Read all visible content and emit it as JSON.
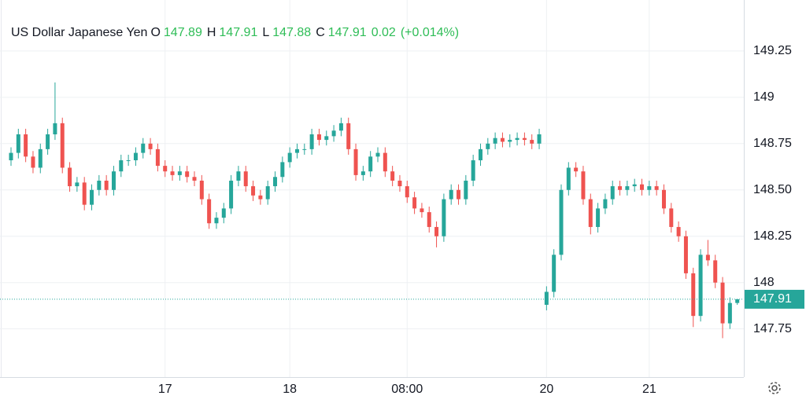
{
  "chart_data": {
    "type": "candlestick",
    "title": "US Dollar Japanese Yen",
    "header": [
      {
        "label": "O",
        "value": 147.89
      },
      {
        "label": "H",
        "value": 147.91
      },
      {
        "label": "L",
        "value": 147.88
      },
      {
        "label": "C",
        "value": 147.91
      }
    ],
    "change": 0.02,
    "change_pct": {
      "value": 0.014,
      "label": "(+0.014%)"
    },
    "last_price": 147.91,
    "up_color": "#26a69a",
    "down_color": "#ef5350",
    "grid": true,
    "ylim": [
      147.49,
      149.525
    ],
    "yticks": [
      147.75,
      148,
      148.25,
      {
        "value": 148.5,
        "label": "148.50"
      },
      148.75,
      149,
      149.25
    ],
    "categories": [
      null,
      null,
      null,
      null,
      null,
      null,
      null,
      null,
      null,
      null,
      null,
      null,
      null,
      null,
      null,
      null,
      null,
      null,
      null,
      null,
      null,
      "17",
      null,
      null,
      null,
      null,
      null,
      null,
      null,
      null,
      null,
      null,
      null,
      null,
      null,
      null,
      null,
      null,
      "18",
      null,
      null,
      null,
      null,
      null,
      null,
      null,
      null,
      null,
      null,
      null,
      null,
      null,
      null,
      null,
      "08:00",
      null,
      null,
      null,
      null,
      null,
      null,
      null,
      null,
      null,
      null,
      null,
      null,
      null,
      null,
      null,
      null,
      null,
      null,
      "20",
      null,
      null,
      null,
      null,
      null,
      null,
      null,
      null,
      null,
      null,
      null,
      null,
      null,
      "21",
      null,
      null,
      null,
      null,
      null,
      null,
      null,
      null,
      null,
      null,
      null,
      null
    ],
    "open": [
      148.66,
      148.7,
      148.8,
      148.68,
      148.62,
      148.72,
      148.8,
      148.86,
      148.62,
      148.52,
      148.54,
      148.42,
      148.5,
      148.55,
      148.5,
      148.6,
      148.66,
      148.66,
      148.7,
      148.75,
      148.72,
      148.63,
      148.6,
      148.58,
      148.6,
      148.57,
      148.55,
      148.45,
      148.32,
      148.35,
      148.4,
      148.55,
      148.6,
      148.52,
      148.47,
      148.45,
      148.52,
      148.57,
      148.65,
      148.7,
      148.72,
      148.72,
      148.8,
      148.77,
      148.79,
      148.82,
      148.86,
      148.72,
      148.58,
      148.6,
      148.68,
      148.7,
      148.6,
      148.55,
      148.52,
      148.46,
      148.4,
      148.38,
      148.3,
      148.25,
      148.45,
      148.5,
      148.45,
      148.55,
      148.66,
      148.72,
      148.75,
      148.78,
      148.76,
      148.77,
      148.78,
      148.77,
      148.75,
      147.88,
      147.95,
      148.15,
      148.5,
      148.62,
      148.6,
      148.45,
      148.3,
      148.4,
      148.45,
      148.52,
      148.5,
      148.52,
      148.53,
      148.5,
      148.52,
      148.5,
      148.4,
      148.3,
      148.25,
      148.05,
      147.82,
      148.15,
      148.12,
      148.0,
      147.78,
      147.89
    ],
    "high": [
      148.73,
      148.83,
      148.83,
      148.71,
      148.75,
      148.83,
      149.08,
      148.89,
      148.65,
      148.57,
      148.57,
      148.53,
      148.58,
      148.58,
      148.63,
      148.69,
      148.69,
      148.73,
      148.78,
      148.78,
      148.75,
      148.66,
      148.63,
      148.63,
      148.63,
      148.6,
      148.58,
      148.48,
      148.38,
      148.43,
      148.58,
      148.63,
      148.63,
      148.55,
      148.5,
      148.55,
      148.6,
      148.68,
      148.73,
      148.75,
      148.75,
      148.83,
      148.83,
      148.82,
      148.85,
      148.89,
      148.89,
      148.75,
      148.63,
      148.71,
      148.73,
      148.73,
      148.63,
      148.58,
      148.55,
      148.49,
      148.43,
      148.41,
      148.33,
      148.48,
      148.53,
      148.53,
      148.58,
      148.69,
      148.75,
      148.78,
      148.81,
      148.81,
      148.8,
      148.81,
      148.81,
      148.8,
      148.83,
      147.98,
      148.18,
      148.53,
      148.65,
      148.65,
      148.63,
      148.48,
      148.43,
      148.48,
      148.55,
      148.55,
      148.55,
      148.56,
      148.56,
      148.55,
      148.55,
      148.53,
      148.43,
      148.33,
      148.28,
      148.08,
      148.18,
      148.23,
      148.15,
      148.03,
      147.92,
      147.91
    ],
    "low": [
      148.63,
      148.67,
      148.65,
      148.59,
      148.59,
      148.69,
      148.77,
      148.59,
      148.49,
      148.49,
      148.39,
      148.39,
      148.47,
      148.47,
      148.47,
      148.57,
      148.63,
      148.63,
      148.67,
      148.69,
      148.6,
      148.57,
      148.55,
      148.55,
      148.54,
      148.52,
      148.42,
      148.29,
      148.29,
      148.32,
      148.37,
      148.52,
      148.49,
      148.44,
      148.42,
      148.42,
      148.49,
      148.54,
      148.62,
      148.67,
      148.69,
      148.69,
      148.74,
      148.74,
      148.76,
      148.79,
      148.69,
      148.55,
      148.55,
      148.57,
      148.65,
      148.57,
      148.52,
      148.49,
      148.43,
      148.37,
      148.35,
      148.27,
      148.19,
      148.22,
      148.42,
      148.42,
      148.42,
      148.52,
      148.63,
      148.69,
      148.72,
      148.73,
      148.73,
      148.74,
      148.74,
      148.72,
      148.72,
      147.85,
      147.92,
      148.12,
      148.47,
      148.57,
      148.42,
      148.26,
      148.27,
      148.37,
      148.42,
      148.47,
      148.47,
      148.49,
      148.47,
      148.47,
      148.47,
      148.37,
      148.27,
      148.22,
      148.02,
      147.76,
      147.79,
      148.09,
      147.97,
      147.7,
      147.75,
      147.88
    ],
    "close": [
      148.7,
      148.8,
      148.68,
      148.62,
      148.72,
      148.8,
      148.86,
      148.62,
      148.52,
      148.54,
      148.42,
      148.5,
      148.55,
      148.5,
      148.6,
      148.66,
      148.66,
      148.7,
      148.75,
      148.72,
      148.63,
      148.6,
      148.58,
      148.6,
      148.57,
      148.55,
      148.45,
      148.32,
      148.35,
      148.4,
      148.55,
      148.6,
      148.52,
      148.47,
      148.45,
      148.52,
      148.57,
      148.65,
      148.7,
      148.72,
      148.72,
      148.8,
      148.77,
      148.79,
      148.82,
      148.86,
      148.72,
      148.58,
      148.6,
      148.68,
      148.7,
      148.6,
      148.55,
      148.52,
      148.46,
      148.4,
      148.38,
      148.3,
      148.25,
      148.45,
      148.5,
      148.45,
      148.55,
      148.66,
      148.72,
      148.75,
      148.78,
      148.76,
      148.77,
      148.78,
      148.77,
      148.75,
      148.8,
      147.95,
      148.15,
      148.5,
      148.62,
      148.6,
      148.45,
      148.3,
      148.4,
      148.45,
      148.52,
      148.5,
      148.52,
      148.53,
      148.5,
      148.52,
      148.5,
      148.4,
      148.3,
      148.25,
      148.05,
      147.82,
      148.15,
      148.12,
      148.0,
      147.78,
      147.89,
      147.91
    ]
  }
}
